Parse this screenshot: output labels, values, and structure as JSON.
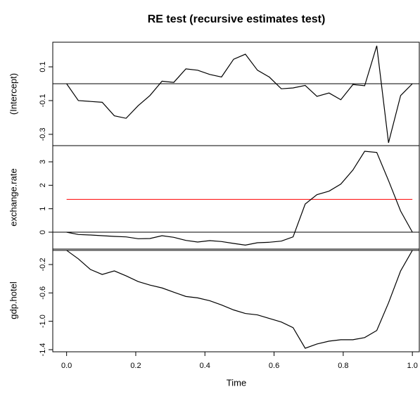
{
  "chart_data": [
    {
      "type": "line",
      "title": "RE test (recursive estimates test)",
      "ylabel": "(Intercept)",
      "color": "#000000",
      "x": [
        0,
        0.034,
        0.069,
        0.103,
        0.138,
        0.172,
        0.207,
        0.241,
        0.276,
        0.31,
        0.345,
        0.379,
        0.414,
        0.448,
        0.483,
        0.517,
        0.552,
        0.586,
        0.621,
        0.655,
        0.69,
        0.724,
        0.759,
        0.793,
        0.828,
        0.862,
        0.897,
        0.931,
        0.966,
        1
      ],
      "values": [
        0,
        -0.1,
        -0.105,
        -0.11,
        -0.19,
        -0.205,
        -0.13,
        -0.07,
        0.015,
        0.008,
        0.088,
        0.08,
        0.055,
        0.04,
        0.145,
        0.175,
        0.08,
        0.04,
        -0.03,
        -0.025,
        -0.01,
        -0.075,
        -0.055,
        -0.095,
        -0.005,
        -0.012,
        0.225,
        -0.35,
        -0.07,
        0
      ],
      "hline": 0,
      "xlim": [
        -0.04,
        1.02
      ],
      "ylim": [
        -0.367,
        0.246
      ],
      "yticks": [
        0.1,
        -0.1,
        -0.3
      ]
    },
    {
      "type": "line",
      "ylabel": "exchange.rate",
      "color": "#000000",
      "x": [
        0,
        0.034,
        0.069,
        0.103,
        0.138,
        0.172,
        0.207,
        0.241,
        0.276,
        0.31,
        0.345,
        0.379,
        0.414,
        0.448,
        0.483,
        0.517,
        0.552,
        0.586,
        0.621,
        0.655,
        0.69,
        0.724,
        0.759,
        0.793,
        0.828,
        0.862,
        0.897,
        0.931,
        0.966,
        1
      ],
      "values": [
        0,
        -0.1,
        -0.12,
        -0.15,
        -0.18,
        -0.2,
        -0.28,
        -0.27,
        -0.15,
        -0.22,
        -0.35,
        -0.42,
        -0.36,
        -0.4,
        -0.48,
        -0.55,
        -0.45,
        -0.43,
        -0.38,
        -0.2,
        1.2,
        1.6,
        1.75,
        2.05,
        2.65,
        3.45,
        3.4,
        2.2,
        0.9,
        0
      ],
      "hline": 0,
      "boundary": 1.4,
      "boundary_color": "#ff0000",
      "xlim": [
        -0.04,
        1.02
      ],
      "ylim": [
        -0.72,
        3.69
      ],
      "yticks": [
        0,
        1,
        2,
        3
      ]
    },
    {
      "type": "line",
      "ylabel": "gdp.hotel",
      "xlabel": "Time",
      "color": "#000000",
      "x": [
        0,
        0.034,
        0.069,
        0.103,
        0.138,
        0.172,
        0.207,
        0.241,
        0.276,
        0.31,
        0.345,
        0.379,
        0.414,
        0.448,
        0.483,
        0.517,
        0.552,
        0.586,
        0.621,
        0.655,
        0.69,
        0.724,
        0.759,
        0.793,
        0.828,
        0.862,
        0.897,
        0.931,
        0.966,
        1
      ],
      "values": [
        0,
        -0.12,
        -0.27,
        -0.34,
        -0.29,
        -0.36,
        -0.44,
        -0.49,
        -0.53,
        -0.59,
        -0.65,
        -0.67,
        -0.71,
        -0.77,
        -0.84,
        -0.89,
        -0.91,
        -0.96,
        -1.01,
        -1.09,
        -1.38,
        -1.32,
        -1.28,
        -1.26,
        -1.26,
        -1.23,
        -1.13,
        -0.74,
        -0.29,
        0
      ],
      "hline": 0,
      "xlim": [
        -0.04,
        1.02
      ],
      "ylim": [
        -1.43,
        0.018
      ],
      "yticks": [
        -0.2,
        -0.6,
        {
          "value": -1,
          "label": "-1.0"
        },
        -1.4
      ],
      "xticks": [
        {
          "value": 0,
          "label": "0.0"
        },
        0.2,
        0.4,
        0.6,
        0.8,
        {
          "value": 1,
          "label": "1.0"
        }
      ]
    }
  ]
}
